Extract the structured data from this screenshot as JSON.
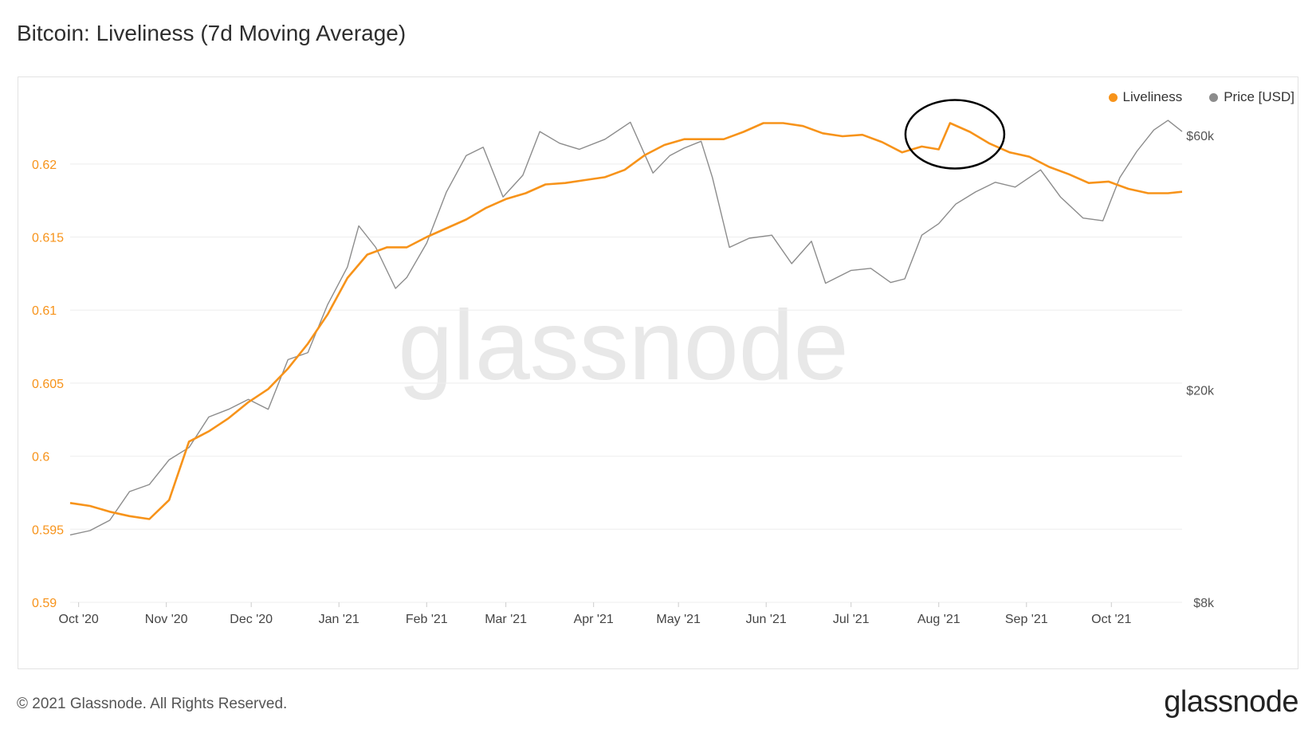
{
  "title": "Bitcoin: Liveliness (7d Moving Average)",
  "footer": "© 2021 Glassnode. All Rights Reserved.",
  "brand": "glassnode",
  "watermark": "glassnode",
  "colors": {
    "liveliness": "#f7931a",
    "price": "#8c8c8c",
    "grid": "#eeeeee",
    "annotation": "#000000"
  },
  "chart_data": {
    "type": "line",
    "title": "Bitcoin: Liveliness (7d Moving Average)",
    "legend": {
      "placement": "top-right",
      "entries": [
        "Liveliness",
        "Price [USD]"
      ]
    },
    "grid": true,
    "x_ticks": [
      "Oct '20",
      "Nov '20",
      "Dec '20",
      "Jan '21",
      "Feb '21",
      "Mar '21",
      "Apr '21",
      "May '21",
      "Jun '21",
      "Jul '21",
      "Aug '21",
      "Sep '21",
      "Oct '21"
    ],
    "x_range": [
      "2020-09-28",
      "2021-10-26"
    ],
    "y_left": {
      "ticks": [
        "0.62",
        "0.615",
        "0.61",
        "0.605",
        "0.6",
        "0.595",
        "0.59"
      ],
      "range": [
        0.59,
        0.6255
      ]
    },
    "y_right": {
      "ticks": [
        "$60k",
        "$20k",
        "$8k"
      ],
      "scale": "log",
      "range": [
        8000,
        75000
      ]
    },
    "series": [
      {
        "name": "Liveliness",
        "axis": "left",
        "x": [
          "2020-09-28",
          "2020-10-05",
          "2020-10-12",
          "2020-10-19",
          "2020-10-26",
          "2020-11-02",
          "2020-11-09",
          "2020-11-16",
          "2020-11-23",
          "2020-11-30",
          "2020-12-07",
          "2020-12-14",
          "2020-12-21",
          "2020-12-28",
          "2021-01-04",
          "2021-01-11",
          "2021-01-18",
          "2021-01-25",
          "2021-02-01",
          "2021-02-08",
          "2021-02-15",
          "2021-02-22",
          "2021-03-01",
          "2021-03-08",
          "2021-03-15",
          "2021-03-22",
          "2021-03-29",
          "2021-04-05",
          "2021-04-12",
          "2021-04-19",
          "2021-04-26",
          "2021-05-03",
          "2021-05-10",
          "2021-05-17",
          "2021-05-24",
          "2021-05-31",
          "2021-06-07",
          "2021-06-14",
          "2021-06-21",
          "2021-06-28",
          "2021-07-05",
          "2021-07-12",
          "2021-07-19",
          "2021-07-26",
          "2021-08-01",
          "2021-08-05",
          "2021-08-12",
          "2021-08-19",
          "2021-08-26",
          "2021-09-02",
          "2021-09-09",
          "2021-09-16",
          "2021-09-23",
          "2021-09-30",
          "2021-10-07",
          "2021-10-14",
          "2021-10-21",
          "2021-10-26"
        ],
        "values": [
          0.5968,
          0.5966,
          0.5962,
          0.5959,
          0.5957,
          0.597,
          0.601,
          0.6017,
          0.6026,
          0.6037,
          0.6046,
          0.606,
          0.6077,
          0.6097,
          0.6122,
          0.6138,
          0.6143,
          0.6143,
          0.615,
          0.6156,
          0.6162,
          0.617,
          0.6176,
          0.618,
          0.6186,
          0.6187,
          0.6189,
          0.6191,
          0.6196,
          0.6206,
          0.6213,
          0.6217,
          0.6217,
          0.6217,
          0.6222,
          0.6228,
          0.6228,
          0.6226,
          0.6221,
          0.6219,
          0.622,
          0.6215,
          0.6208,
          0.6212,
          0.621,
          0.6228,
          0.6222,
          0.6214,
          0.6208,
          0.6205,
          0.6198,
          0.6193,
          0.6187,
          0.6188,
          0.6183,
          0.618,
          0.618,
          0.6181
        ]
      },
      {
        "name": "Price [USD]",
        "axis": "right",
        "x": [
          "2020-09-28",
          "2020-10-05",
          "2020-10-12",
          "2020-10-19",
          "2020-10-26",
          "2020-11-02",
          "2020-11-09",
          "2020-11-16",
          "2020-11-23",
          "2020-11-30",
          "2020-12-07",
          "2020-12-14",
          "2020-12-21",
          "2020-12-28",
          "2021-01-04",
          "2021-01-08",
          "2021-01-14",
          "2021-01-21",
          "2021-01-25",
          "2021-02-01",
          "2021-02-08",
          "2021-02-15",
          "2021-02-21",
          "2021-02-28",
          "2021-03-07",
          "2021-03-13",
          "2021-03-20",
          "2021-03-27",
          "2021-04-05",
          "2021-04-14",
          "2021-04-22",
          "2021-04-28",
          "2021-05-03",
          "2021-05-09",
          "2021-05-13",
          "2021-05-19",
          "2021-05-26",
          "2021-06-03",
          "2021-06-10",
          "2021-06-17",
          "2021-06-22",
          "2021-07-01",
          "2021-07-08",
          "2021-07-15",
          "2021-07-20",
          "2021-07-26",
          "2021-08-01",
          "2021-08-07",
          "2021-08-14",
          "2021-08-21",
          "2021-08-28",
          "2021-09-06",
          "2021-09-13",
          "2021-09-21",
          "2021-09-28",
          "2021-10-04",
          "2021-10-10",
          "2021-10-16",
          "2021-10-21",
          "2021-10-26"
        ],
        "values": [
          10700,
          10900,
          11400,
          12900,
          13300,
          14800,
          15600,
          17800,
          18400,
          19200,
          18400,
          22800,
          23500,
          28900,
          34000,
          40600,
          37000,
          31000,
          32500,
          37700,
          47000,
          55000,
          57000,
          46000,
          50500,
          61000,
          58000,
          56500,
          59000,
          63500,
          51000,
          55000,
          56800,
          58500,
          50000,
          37000,
          38500,
          39000,
          34500,
          38000,
          31700,
          33500,
          33800,
          31800,
          32300,
          39000,
          41000,
          44600,
          47000,
          49000,
          48000,
          51700,
          46000,
          42000,
          41500,
          50000,
          56000,
          61400,
          64000,
          61000
        ]
      }
    ],
    "annotation": {
      "type": "ellipse",
      "around": "Liveliness",
      "x": "2021-08-05"
    }
  }
}
